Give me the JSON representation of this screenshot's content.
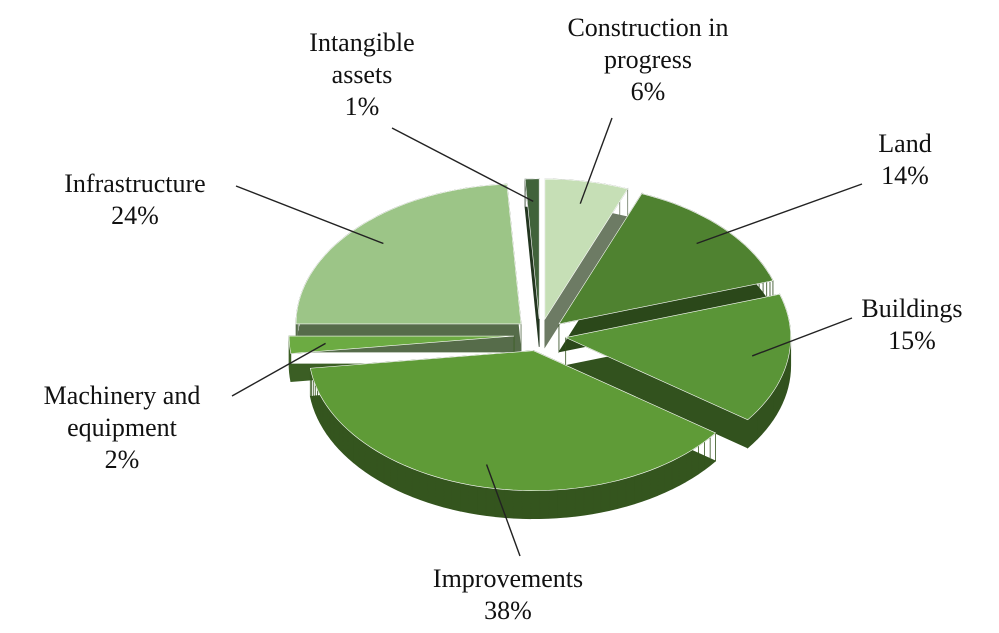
{
  "chart_data": {
    "type": "pie",
    "categories": [
      "Construction in progress",
      "Land",
      "Buildings",
      "Improvements",
      "Machinery and equipment",
      "Infrastructure",
      "Intangible assets"
    ],
    "values": [
      6,
      14,
      15,
      38,
      2,
      24,
      1
    ],
    "value_labels": [
      "6%",
      "14%",
      "15%",
      "38%",
      "2%",
      "24%",
      "1%"
    ],
    "colors": [
      "#c6dfb6",
      "#4f8230",
      "#5a9537",
      "#5f9b37",
      "#6cab42",
      "#9cc587",
      "#40623a"
    ]
  }
}
